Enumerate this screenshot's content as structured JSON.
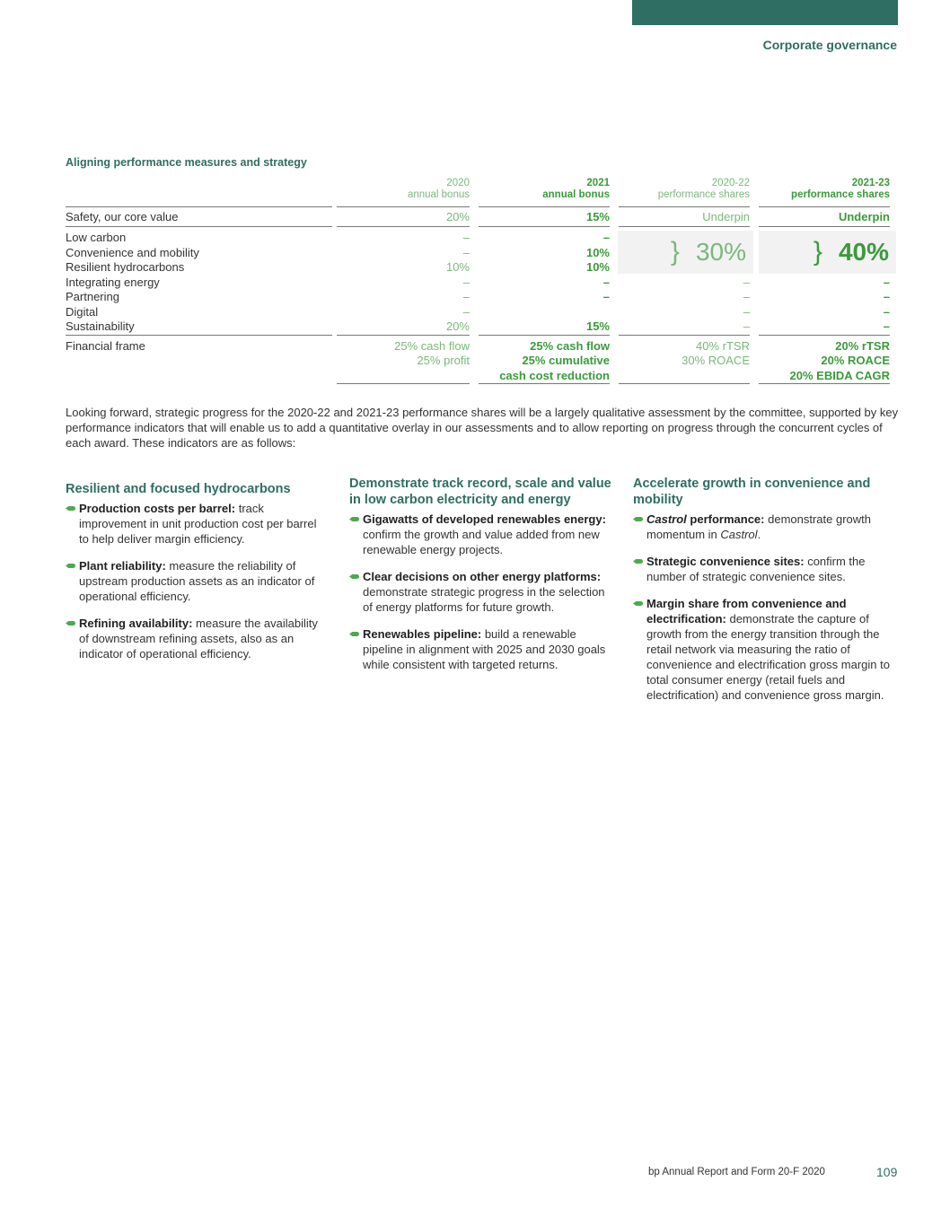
{
  "header": {
    "section": "Corporate governance"
  },
  "table": {
    "title": "Aligning performance measures and strategy",
    "columns": [
      {
        "year": "2020",
        "label": "annual bonus"
      },
      {
        "year": "2021",
        "label": "annual bonus"
      },
      {
        "year": "2020-22",
        "label": "performance shares"
      },
      {
        "year": "2021-23",
        "label": "performance shares"
      }
    ],
    "safety": {
      "label": "Safety, our core value",
      "values": [
        "20%",
        "15%",
        "Underpin",
        "Underpin"
      ]
    },
    "strategy_rows": [
      {
        "label": "Low carbon",
        "values": [
          "–",
          "–"
        ]
      },
      {
        "label": "Convenience and mobility",
        "values": [
          "–",
          "10%"
        ]
      },
      {
        "label": "Resilient hydrocarbons",
        "values": [
          "10%",
          "10%"
        ]
      },
      {
        "label": "Integrating energy",
        "values": [
          "–",
          "–",
          "–",
          "–"
        ]
      },
      {
        "label": "Partnering",
        "values": [
          "–",
          "–",
          "–",
          "–"
        ]
      },
      {
        "label": "Digital",
        "values": [
          "–",
          "",
          "–",
          "–"
        ]
      },
      {
        "label": "Sustainability",
        "values": [
          "20%",
          "15%",
          "–",
          "–"
        ]
      }
    ],
    "grouped": {
      "c3": "30%",
      "c4": "40%",
      "brace": "}"
    },
    "financial": {
      "label": "Financial frame",
      "c1": [
        "25% cash flow",
        "25% profit"
      ],
      "c2": [
        "25% cash flow",
        "25% cumulative",
        "cash cost reduction"
      ],
      "c3": [
        "40% rTSR",
        "30% ROACE"
      ],
      "c4": [
        "20% rTSR",
        "20% ROACE",
        "20% EBIDA CAGR"
      ]
    }
  },
  "paragraph": "Looking forward, strategic progress for the 2020-22 and 2021-23 performance shares will be a largely qualitative assessment by the committee, supported by key performance indicators that will enable us to add a quantitative overlay in our assessments and to allow reporting on progress through the concurrent cycles of each award. These indicators are as follows:",
  "columns": [
    {
      "heading": "Resilient and focused hydrocarbons",
      "items": [
        {
          "bold": "Production costs per barrel:",
          "text": " track improvement in unit production cost per barrel to help deliver margin efficiency."
        },
        {
          "bold": "Plant reliability:",
          "text": " measure the reliability of upstream production assets as an indicator of operational efficiency."
        },
        {
          "bold": "Refining availability:",
          "text": " measure the availability of downstream refining assets, also as an indicator of operational efficiency."
        }
      ]
    },
    {
      "heading": "Demonstrate track record, scale and value in low carbon electricity and energy",
      "items": [
        {
          "bold": "Gigawatts of developed renewables energy:",
          "text": " confirm the growth and value added from new renewable energy projects."
        },
        {
          "bold": "Clear decisions on other energy platforms:",
          "text": " demonstrate strategic progress in the selection of energy platforms for future growth."
        },
        {
          "bold": "Renewables pipeline:",
          "text": " build a renewable pipeline in alignment with 2025 and 2030 goals while consistent with targeted returns."
        }
      ]
    },
    {
      "heading": "Accelerate growth in convenience and mobility",
      "items": [
        {
          "bold_italic": "Castrol",
          "bold": " performance:",
          "text": " demonstrate growth momentum in ",
          "italic": "Castrol",
          "tail": "."
        },
        {
          "bold": "Strategic convenience sites:",
          "text": " confirm the number of strategic convenience sites."
        },
        {
          "bold": "Margin share from convenience and electrification:",
          "text": " demonstrate the capture of growth from the energy transition through the retail network via measuring the ratio of convenience and electrification gross margin to total consumer energy (retail fuels and electrification) and convenience gross margin."
        }
      ]
    }
  ],
  "footer": {
    "text": "bp Annual Report and Form 20-F 2020",
    "page": "109"
  },
  "colors": {
    "brand": "#2f6e62",
    "bold_green": "#3b9a3b",
    "light_green": "#7ab87a"
  }
}
